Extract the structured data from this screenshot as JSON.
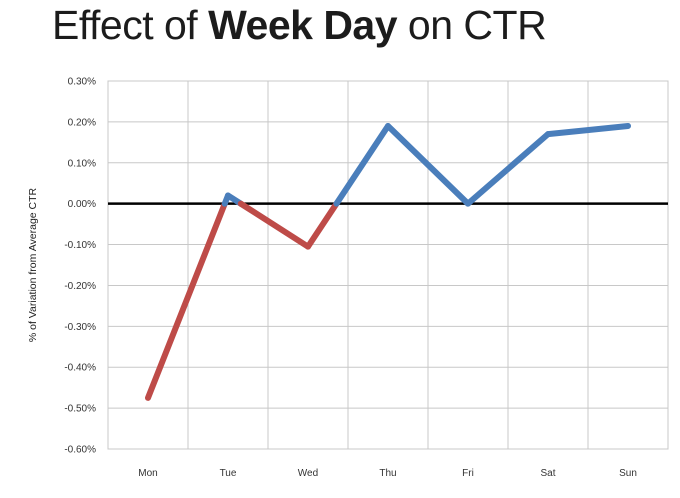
{
  "title": {
    "prefix": "Effect of ",
    "emphasis": "Week Day",
    "suffix": " on CTR"
  },
  "chart_data": {
    "type": "line",
    "categories": [
      "Mon",
      "Tue",
      "Wed",
      "Thu",
      "Fri",
      "Sat",
      "Sun"
    ],
    "values": [
      -0.475,
      0.02,
      -0.105,
      0.19,
      0.0,
      0.17,
      0.19
    ],
    "ylabel": "% of Variation from Average CTR",
    "xlabel": "",
    "ylim": [
      -0.6,
      0.3
    ],
    "yticks": [
      "0.30%",
      "0.20%",
      "0.10%",
      "0.00%",
      "-0.10%",
      "-0.20%",
      "-0.30%",
      "-0.40%",
      "-0.50%",
      "-0.60%"
    ],
    "ytick_values": [
      0.3,
      0.2,
      0.1,
      0.0,
      -0.1,
      -0.2,
      -0.3,
      -0.4,
      -0.5,
      -0.6
    ],
    "grid": true,
    "zero_line": true,
    "colors": {
      "positive": "#4a7ebb",
      "negative": "#be4b48",
      "grid": "#c8c8c8",
      "zero": "#000000"
    }
  }
}
